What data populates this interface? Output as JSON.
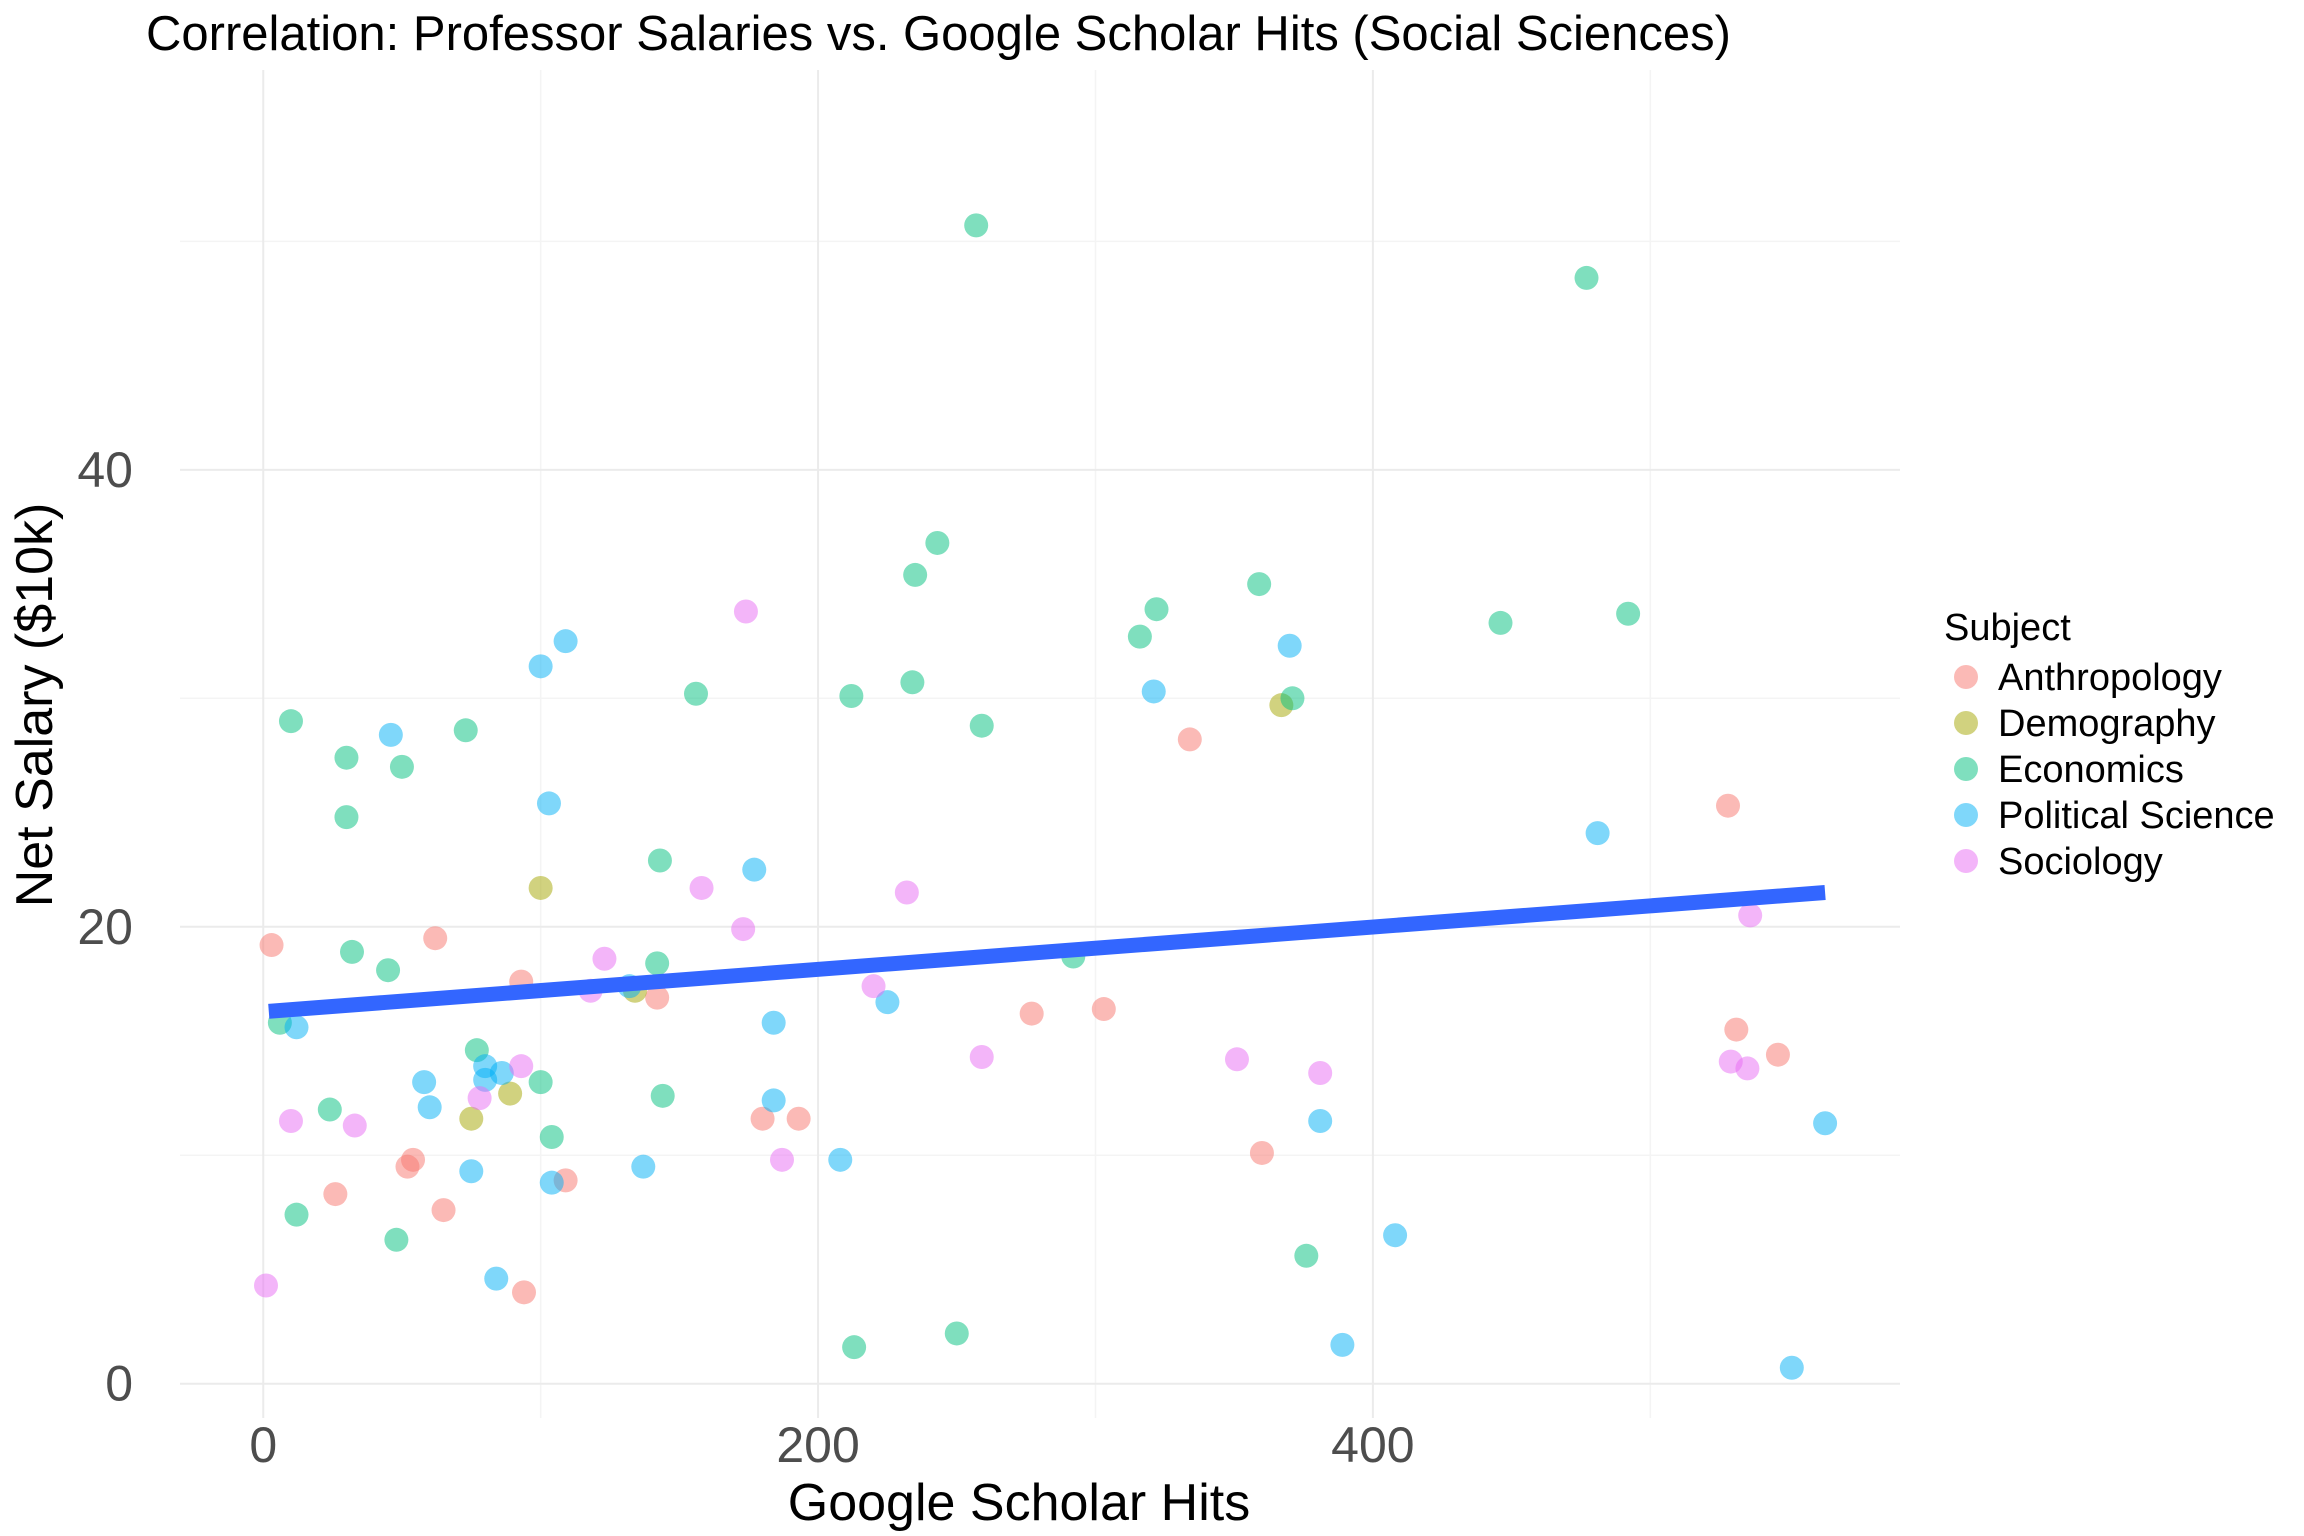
{
  "chart_data": {
    "type": "scatter",
    "title": "Correlation: Professor Salaries vs. Google Scholar Hits (Social Sciences)",
    "xlabel": "Google Scholar Hits",
    "ylabel": "Net Salary ($10k)",
    "xlim": [
      -30,
      590
    ],
    "ylim": [
      -1.5,
      57.5
    ],
    "x_ticks": [
      0,
      200,
      400
    ],
    "y_ticks": [
      0,
      20,
      40
    ],
    "x_minor": [
      100,
      300,
      500
    ],
    "y_minor": [
      10,
      30,
      50
    ],
    "grid": true,
    "legend": {
      "title": "Subject",
      "placement": "right",
      "entries": [
        "Anthropology",
        "Demography",
        "Economics",
        "Political Science",
        "Sociology"
      ]
    },
    "colors": {
      "Anthropology": "#F8766D",
      "Demography": "#A3A500",
      "Economics": "#00BF7D",
      "Political Science": "#00B0F6",
      "Sociology": "#E76BF3",
      "trend": "#3366FF"
    },
    "trend_line": {
      "x": [
        2,
        563
      ],
      "y": [
        16.3,
        21.5
      ]
    },
    "series": [
      {
        "name": "Anthropology",
        "points": [
          [
            3,
            19.2
          ],
          [
            62,
            19.5
          ],
          [
            93,
            17.6
          ],
          [
            142,
            16.9
          ],
          [
            54,
            9.8
          ],
          [
            52,
            9.5
          ],
          [
            26,
            8.3
          ],
          [
            65,
            7.6
          ],
          [
            94,
            4.0
          ],
          [
            109,
            8.9
          ],
          [
            180,
            11.6
          ],
          [
            193,
            11.6
          ],
          [
            277,
            16.2
          ],
          [
            303,
            16.4
          ],
          [
            334,
            28.2
          ],
          [
            360,
            10.1
          ],
          [
            528,
            25.3
          ],
          [
            531,
            15.5
          ],
          [
            546,
            14.4
          ]
        ]
      },
      {
        "name": "Demography",
        "points": [
          [
            100,
            21.7
          ],
          [
            134,
            17.2
          ],
          [
            75,
            11.6
          ],
          [
            89,
            12.7
          ],
          [
            367,
            29.7
          ]
        ]
      },
      {
        "name": "Economics",
        "points": [
          [
            257,
            50.7
          ],
          [
            477,
            48.4
          ],
          [
            243,
            36.8
          ],
          [
            235,
            35.4
          ],
          [
            359,
            35.0
          ],
          [
            322,
            33.9
          ],
          [
            492,
            33.7
          ],
          [
            446,
            33.3
          ],
          [
            316,
            32.7
          ],
          [
            234,
            30.7
          ],
          [
            156,
            30.2
          ],
          [
            212,
            30.1
          ],
          [
            371,
            30.0
          ],
          [
            259,
            28.8
          ],
          [
            73,
            28.6
          ],
          [
            10,
            29.0
          ],
          [
            30,
            27.4
          ],
          [
            50,
            27.0
          ],
          [
            30,
            24.8
          ],
          [
            143,
            22.9
          ],
          [
            32,
            18.9
          ],
          [
            45,
            18.1
          ],
          [
            142,
            18.4
          ],
          [
            292,
            18.7
          ],
          [
            6,
            15.8
          ],
          [
            77,
            14.6
          ],
          [
            100,
            13.2
          ],
          [
            24,
            12.0
          ],
          [
            144,
            12.6
          ],
          [
            104,
            10.8
          ],
          [
            12,
            7.4
          ],
          [
            48,
            6.3
          ],
          [
            376,
            5.6
          ],
          [
            250,
            2.2
          ],
          [
            213,
            1.6
          ]
        ]
      },
      {
        "name": "Political Science",
        "points": [
          [
            109,
            32.5
          ],
          [
            100,
            31.4
          ],
          [
            46,
            28.4
          ],
          [
            321,
            30.3
          ],
          [
            370,
            32.3
          ],
          [
            103,
            25.4
          ],
          [
            177,
            22.5
          ],
          [
            481,
            24.1
          ],
          [
            12,
            15.6
          ],
          [
            58,
            13.2
          ],
          [
            80,
            13.9
          ],
          [
            86,
            13.6
          ],
          [
            80,
            13.3
          ],
          [
            60,
            12.1
          ],
          [
            184,
            15.8
          ],
          [
            225,
            16.7
          ],
          [
            132,
            17.4
          ],
          [
            184,
            12.4
          ],
          [
            75,
            9.3
          ],
          [
            104,
            8.8
          ],
          [
            137,
            9.5
          ],
          [
            208,
            9.8
          ],
          [
            381,
            11.5
          ],
          [
            84,
            4.6
          ],
          [
            408,
            6.5
          ],
          [
            389,
            1.7
          ],
          [
            551,
            0.7
          ],
          [
            563,
            11.4
          ]
        ]
      },
      {
        "name": "Sociology",
        "points": [
          [
            174,
            33.8
          ],
          [
            158,
            21.7
          ],
          [
            173,
            19.9
          ],
          [
            232,
            21.5
          ],
          [
            123,
            18.6
          ],
          [
            118,
            17.2
          ],
          [
            220,
            17.4
          ],
          [
            93,
            13.9
          ],
          [
            78,
            12.5
          ],
          [
            10,
            11.5
          ],
          [
            33,
            11.3
          ],
          [
            187,
            9.8
          ],
          [
            259,
            14.3
          ],
          [
            351,
            14.2
          ],
          [
            381,
            13.6
          ],
          [
            529,
            14.1
          ],
          [
            535,
            13.8
          ],
          [
            536,
            20.5
          ],
          [
            1,
            4.3
          ]
        ]
      }
    ]
  }
}
